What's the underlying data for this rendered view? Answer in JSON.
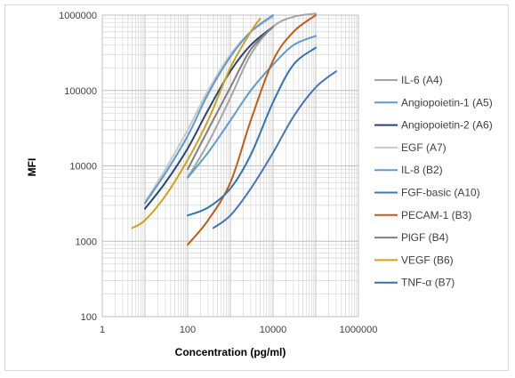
{
  "chart_data": {
    "type": "line",
    "xlabel": "Concentration (pg/ml)",
    "ylabel": "MFI",
    "xscale": "log",
    "yscale": "log",
    "xlim": [
      1,
      1000000
    ],
    "ylim": [
      100,
      1000000
    ],
    "x_ticks": [
      "1",
      "100",
      "10000",
      "1000000"
    ],
    "y_ticks": [
      "100",
      "1000",
      "10000",
      "100000",
      "1000000"
    ],
    "grid": "major and minor, both axes",
    "legend_position": "right",
    "series": [
      {
        "name": "IL-6 (A4)",
        "color": "#a5a5a5",
        "x": [
          100,
          300,
          1000,
          3000,
          10000,
          30000,
          100000
        ],
        "y": [
          7000,
          20000,
          80000,
          300000,
          700000,
          950000,
          1050000
        ]
      },
      {
        "name": "Angiopoietin-1 (A5)",
        "color": "#5b9bd5",
        "x": [
          100,
          300,
          1000,
          3000,
          10000,
          30000,
          100000
        ],
        "y": [
          7000,
          15000,
          40000,
          100000,
          220000,
          400000,
          530000
        ]
      },
      {
        "name": "Angiopoietin-2 (A6)",
        "color": "#264478",
        "x": [
          10,
          30,
          100,
          300,
          1000,
          3000,
          10000
        ],
        "y": [
          2700,
          6000,
          17000,
          55000,
          180000,
          400000,
          700000
        ]
      },
      {
        "name": "EGF (A7)",
        "color": "#c9c9c9",
        "x": [
          10,
          30,
          100,
          300,
          1000,
          3000,
          10000
        ],
        "y": [
          3300,
          9000,
          30000,
          100000,
          300000,
          600000,
          950000
        ]
      },
      {
        "name": "IL-8 (B2)",
        "color": "#5b9bd5",
        "x": [
          10,
          30,
          100,
          300,
          1000,
          3000,
          10000
        ],
        "y": [
          3200,
          8000,
          25000,
          90000,
          280000,
          600000,
          1000000
        ]
      },
      {
        "name": "FGF-basic (A10)",
        "color": "#4472c4",
        "x": [
          400,
          1000,
          3000,
          10000,
          30000,
          100000,
          300000
        ],
        "y": [
          1500,
          2200,
          5000,
          15000,
          45000,
          110000,
          180000
        ]
      },
      {
        "name": "PECAM-1 (B3)",
        "color": "#c55a11",
        "x": [
          100,
          300,
          1000,
          3000,
          10000,
          30000,
          100000
        ],
        "y": [
          900,
          1900,
          6000,
          40000,
          250000,
          600000,
          1000000
        ]
      },
      {
        "name": "PlGF (B4)",
        "color": "#7f7f7f",
        "x": [
          100,
          300,
          1000,
          3000,
          10000
        ],
        "y": [
          9000,
          30000,
          110000,
          350000,
          700000
        ]
      },
      {
        "name": "VEGF (B6)",
        "color": "#d4a017",
        "x": [
          5,
          10,
          30,
          100,
          300,
          1000,
          3000,
          5000
        ],
        "y": [
          1500,
          1900,
          4000,
          12000,
          40000,
          200000,
          600000,
          900000
        ]
      },
      {
        "name": "TNF-α (B7)",
        "color": "#2e75b6",
        "x": [
          100,
          300,
          1000,
          3000,
          10000,
          30000,
          100000
        ],
        "y": [
          2200,
          2800,
          5000,
          14000,
          70000,
          220000,
          370000
        ]
      }
    ]
  }
}
